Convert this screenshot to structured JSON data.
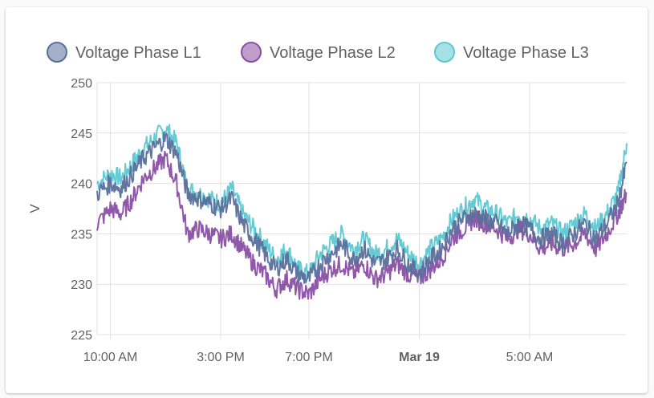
{
  "chart_data": {
    "type": "line",
    "ylabel": "V",
    "ylim": [
      225,
      250
    ],
    "y_ticks": [
      "250",
      "245",
      "240",
      "235",
      "230",
      "225"
    ],
    "x_ticks": [
      {
        "label": "10:00 AM",
        "hour": 0,
        "bold": false
      },
      {
        "label": "3:00 PM",
        "hour": 5,
        "bold": false
      },
      {
        "label": "7:00 PM",
        "hour": 9,
        "bold": false
      },
      {
        "label": "Mar 19",
        "hour": 14,
        "bold": true
      },
      {
        "label": "5:00 AM",
        "hour": 19,
        "bold": false
      }
    ],
    "x_range_hours": [
      -0.6,
      23.4
    ],
    "legend_position": "top",
    "grid": true,
    "x": [
      -0.6,
      0,
      0.5,
      1,
      1.5,
      2,
      2.5,
      3,
      3.5,
      4,
      4.5,
      5,
      5.5,
      6,
      6.5,
      7,
      7.5,
      8,
      8.5,
      9,
      9.5,
      10,
      10.5,
      11,
      11.5,
      12,
      12.5,
      13,
      13.5,
      14,
      14.5,
      15,
      15.5,
      16,
      16.5,
      17,
      17.5,
      18,
      18.5,
      19,
      19.5,
      20,
      20.5,
      21,
      21.5,
      22,
      22.5,
      23,
      23.4
    ],
    "series": [
      {
        "name": "Voltage Phase L1",
        "color": "#5a6f9c",
        "values": [
          239,
          240,
          239.5,
          241,
          242.5,
          243.5,
          244.5,
          243,
          239,
          238.5,
          238,
          237.5,
          238.5,
          236,
          234.5,
          233,
          231.5,
          232.5,
          231,
          230.5,
          232,
          233,
          234,
          232.5,
          233.5,
          232,
          232.5,
          233.5,
          232,
          231,
          232.5,
          233.5,
          235.5,
          236.5,
          237,
          236.5,
          236,
          235,
          236,
          235.5,
          234.5,
          235,
          234,
          235,
          236,
          234.5,
          236,
          238,
          242
        ]
      },
      {
        "name": "Voltage Phase L2",
        "color": "#8a4fa3",
        "values": [
          236,
          237.5,
          237,
          238.5,
          240.5,
          241.5,
          242.5,
          240,
          235,
          235.5,
          235,
          234.5,
          235,
          233.5,
          232,
          231,
          229.5,
          230.5,
          229.5,
          229,
          230.5,
          231.5,
          232,
          231,
          232,
          230.5,
          231,
          232,
          231,
          230.5,
          231.5,
          232.5,
          234.5,
          235.5,
          236.5,
          236,
          235.5,
          234.5,
          235.5,
          235,
          233.5,
          234,
          233.5,
          234,
          235,
          233.5,
          235,
          237,
          239
        ]
      },
      {
        "name": "Voltage Phase L3",
        "color": "#5cc8d2",
        "values": [
          240,
          241,
          240.5,
          242,
          243.5,
          244.5,
          245.5,
          244,
          239.5,
          239,
          238.5,
          238,
          239.5,
          237,
          235.5,
          234,
          232.5,
          233.5,
          231.5,
          231,
          233,
          234,
          235,
          233.5,
          234.5,
          233,
          233.5,
          234.5,
          233,
          232,
          233.5,
          234.5,
          236.5,
          237.5,
          238.5,
          237.5,
          237,
          236,
          237,
          236.5,
          235.5,
          236,
          235,
          236,
          237,
          235.5,
          237,
          239,
          244
        ]
      }
    ]
  }
}
